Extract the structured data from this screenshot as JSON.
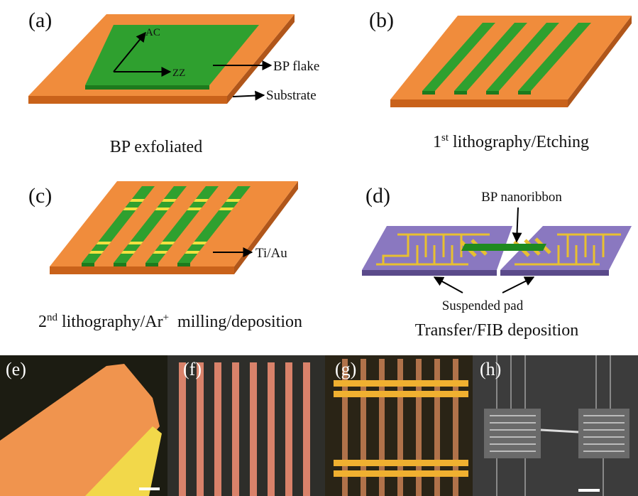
{
  "labels": [
    "(a)",
    "(b)",
    "(c)",
    "(d)",
    "(e)",
    "(f)",
    "(g)",
    "(h)"
  ],
  "a": {
    "axis_ac": "AC",
    "axis_zz": "ZZ",
    "flake": "BP flake",
    "substrate": "Substrate",
    "caption": "BP exfoliated"
  },
  "b": {
    "caption": [
      "1",
      "st",
      " lithography/Etching"
    ]
  },
  "c": {
    "annotation": "Ti/Au",
    "caption": [
      "2",
      "nd",
      " lithography/Ar",
      "+",
      "  milling/deposition"
    ]
  },
  "d": {
    "ribbon": "BP nanoribbon",
    "pad": "Suspended pad",
    "caption": "Transfer/FIB deposition"
  }
}
